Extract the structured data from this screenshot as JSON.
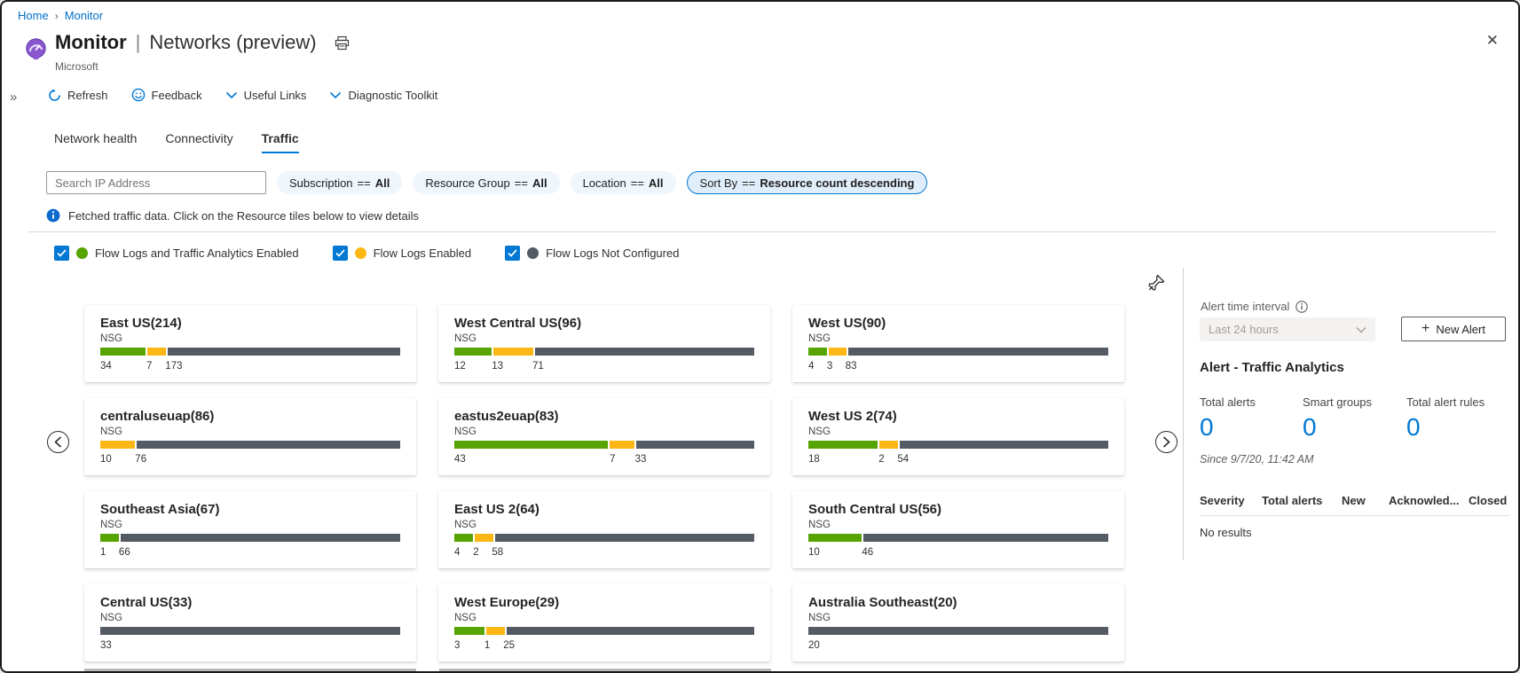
{
  "breadcrumb": {
    "items": [
      "Home",
      "Monitor"
    ],
    "separator": "›"
  },
  "header": {
    "app_title": "Monitor",
    "divider": "|",
    "page_title": "Networks (preview)",
    "publisher": "Microsoft"
  },
  "icons": {
    "close": "✕",
    "collapse_chevrons": "»",
    "plus": "+"
  },
  "toolbar": {
    "refresh": "Refresh",
    "feedback": "Feedback",
    "useful_links": "Useful Links",
    "diagnostic_toolkit": "Diagnostic Toolkit"
  },
  "tabs": [
    {
      "label": "Network health",
      "active": false
    },
    {
      "label": "Connectivity",
      "active": false
    },
    {
      "label": "Traffic",
      "active": true
    }
  ],
  "filters": {
    "search_placeholder": "Search IP Address",
    "pills": [
      {
        "name": "Subscription",
        "op": "==",
        "value": "All"
      },
      {
        "name": "Resource Group",
        "op": "==",
        "value": "All"
      },
      {
        "name": "Location",
        "op": "==",
        "value": "All"
      }
    ],
    "sort": {
      "name": "Sort By",
      "op": "==",
      "value": "Resource count descending"
    }
  },
  "info_banner": "Fetched traffic data. Click on the Resource tiles below to view details",
  "legend": [
    {
      "label": "Flow Logs and Traffic Analytics Enabled",
      "color": "#57a300",
      "checked": true
    },
    {
      "label": "Flow Logs Enabled",
      "color": "#fcb714",
      "checked": true
    },
    {
      "label": "Flow Logs Not Configured",
      "color": "#545b64",
      "checked": true
    }
  ],
  "colors": {
    "accent": "#0078d4",
    "green": "#57a300",
    "yellow": "#fcb714",
    "gray": "#545b64"
  },
  "tiles": [
    {
      "title": "East US(214)",
      "resource": "NSG",
      "segments": [
        {
          "status": "green",
          "value": 34
        },
        {
          "status": "yellow",
          "value": 7
        },
        {
          "status": "gray",
          "value": 173
        }
      ]
    },
    {
      "title": "West Central US(96)",
      "resource": "NSG",
      "segments": [
        {
          "status": "green",
          "value": 12
        },
        {
          "status": "yellow",
          "value": 13
        },
        {
          "status": "gray",
          "value": 71
        }
      ]
    },
    {
      "title": "West US(90)",
      "resource": "NSG",
      "segments": [
        {
          "status": "green",
          "value": 4
        },
        {
          "status": "yellow",
          "value": 3
        },
        {
          "status": "gray",
          "value": 83
        }
      ]
    },
    {
      "title": "centraluseuap(86)",
      "resource": "NSG",
      "segments": [
        {
          "status": "yellow",
          "value": 10
        },
        {
          "status": "gray",
          "value": 76
        }
      ]
    },
    {
      "title": "eastus2euap(83)",
      "resource": "NSG",
      "segments": [
        {
          "status": "green",
          "value": 43
        },
        {
          "status": "yellow",
          "value": 7
        },
        {
          "status": "gray",
          "value": 33
        }
      ]
    },
    {
      "title": "West US 2(74)",
      "resource": "NSG",
      "segments": [
        {
          "status": "green",
          "value": 18
        },
        {
          "status": "yellow",
          "value": 2
        },
        {
          "status": "gray",
          "value": 54
        }
      ]
    },
    {
      "title": "Southeast Asia(67)",
      "resource": "NSG",
      "segments": [
        {
          "status": "green",
          "value": 1
        },
        {
          "status": "gray",
          "value": 66
        }
      ]
    },
    {
      "title": "East US 2(64)",
      "resource": "NSG",
      "segments": [
        {
          "status": "green",
          "value": 4
        },
        {
          "status": "yellow",
          "value": 2
        },
        {
          "status": "gray",
          "value": 58
        }
      ]
    },
    {
      "title": "South Central US(56)",
      "resource": "NSG",
      "segments": [
        {
          "status": "green",
          "value": 10
        },
        {
          "status": "gray",
          "value": 46
        }
      ]
    },
    {
      "title": "Central US(33)",
      "resource": "NSG",
      "segments": [
        {
          "status": "gray",
          "value": 33
        }
      ]
    },
    {
      "title": "West Europe(29)",
      "resource": "NSG",
      "segments": [
        {
          "status": "green",
          "value": 3
        },
        {
          "status": "yellow",
          "value": 1
        },
        {
          "status": "gray",
          "value": 25
        }
      ]
    },
    {
      "title": "Australia Southeast(20)",
      "resource": "NSG",
      "segments": [
        {
          "status": "gray",
          "value": 20
        }
      ]
    }
  ],
  "alert_panel": {
    "interval_label": "Alert time interval",
    "interval_value": "Last 24 hours",
    "new_alert": "New Alert",
    "heading": "Alert - Traffic Analytics",
    "stats": [
      {
        "label": "Total alerts",
        "value": "0"
      },
      {
        "label": "Smart groups",
        "value": "0"
      },
      {
        "label": "Total alert rules",
        "value": "0"
      }
    ],
    "since": "Since 9/7/20, 11:42 AM",
    "table_headers": [
      "Severity",
      "Total alerts",
      "New",
      "Acknowled...",
      "Closed"
    ],
    "empty_text": "No results"
  }
}
